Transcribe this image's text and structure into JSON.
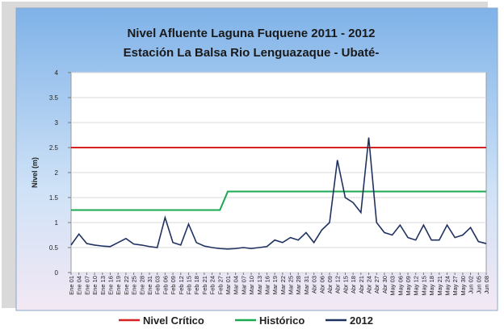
{
  "chart_data": {
    "type": "line",
    "title": "Nivel Afluente Laguna Fuquene 2011 - 2012",
    "subtitle": "Estación La Balsa Rio Lenguazaque - Ubaté-",
    "y_label": "Nivel (m)",
    "categories": [
      "Ene 01",
      "Ene 04",
      "Ene 07",
      "Ene 10",
      "Ene 13",
      "Ene 16",
      "Ene 19",
      "Ene 22",
      "Ene 25",
      "Ene 28",
      "Ene 31",
      "Feb 03",
      "Feb 06",
      "Feb 09",
      "Feb 12",
      "Feb 15",
      "Feb 18",
      "Feb 21",
      "Feb 24",
      "Feb 27",
      "Mar 01",
      "Mar 04",
      "Mar 07",
      "Mar 10",
      "Mar 13",
      "Mar 16",
      "Mar 19",
      "Mar 22",
      "Mar 25",
      "Mar 28",
      "Mar 31",
      "Abr 03",
      "Abr 06",
      "Abr 09",
      "Abr 12",
      "Abr 15",
      "Abr 18",
      "Abr 21",
      "Abr 24",
      "Abr 27",
      "Abr 30",
      "May 03",
      "May 06",
      "May 09",
      "May 12",
      "May 15",
      "May 18",
      "May 21",
      "May 24",
      "May 27",
      "May 30",
      "Jun 02",
      "Jun 05",
      "Jun 08"
    ],
    "series": [
      {
        "name": "Nivel Crítico",
        "color": "#d42020",
        "values": [
          2.5,
          2.5,
          2.5,
          2.5,
          2.5,
          2.5,
          2.5,
          2.5,
          2.5,
          2.5,
          2.5,
          2.5,
          2.5,
          2.5,
          2.5,
          2.5,
          2.5,
          2.5,
          2.5,
          2.5,
          2.5,
          2.5,
          2.5,
          2.5,
          2.5,
          2.5,
          2.5,
          2.5,
          2.5,
          2.5,
          2.5,
          2.5,
          2.5,
          2.5,
          2.5,
          2.5,
          2.5,
          2.5,
          2.5,
          2.5,
          2.5,
          2.5,
          2.5,
          2.5,
          2.5,
          2.5,
          2.5,
          2.5,
          2.5,
          2.5,
          2.5,
          2.5,
          2.5,
          2.5
        ]
      },
      {
        "name": "Histórico",
        "color": "#1aa850",
        "values": [
          1.25,
          1.25,
          1.25,
          1.25,
          1.25,
          1.25,
          1.25,
          1.25,
          1.25,
          1.25,
          1.25,
          1.25,
          1.25,
          1.25,
          1.25,
          1.25,
          1.25,
          1.25,
          1.25,
          1.25,
          1.62,
          1.62,
          1.62,
          1.62,
          1.62,
          1.62,
          1.62,
          1.62,
          1.62,
          1.62,
          1.62,
          1.62,
          1.62,
          1.62,
          1.62,
          1.62,
          1.62,
          1.62,
          1.62,
          1.62,
          1.62,
          1.62,
          1.62,
          1.62,
          1.62,
          1.62,
          1.62,
          1.62,
          1.62,
          1.62,
          1.62,
          1.62,
          1.62,
          1.62
        ]
      },
      {
        "name": "2012",
        "color": "#1f3160",
        "values": [
          0.55,
          0.77,
          0.58,
          0.55,
          0.53,
          0.52,
          0.6,
          0.68,
          0.57,
          0.55,
          0.52,
          0.5,
          1.1,
          0.6,
          0.55,
          0.97,
          0.6,
          0.53,
          0.5,
          0.48,
          0.47,
          0.48,
          0.5,
          0.48,
          0.5,
          0.52,
          0.65,
          0.6,
          0.7,
          0.65,
          0.8,
          0.6,
          0.85,
          1.0,
          2.25,
          1.5,
          1.4,
          1.2,
          2.7,
          1.0,
          0.8,
          0.75,
          0.95,
          0.7,
          0.65,
          0.95,
          0.65,
          0.65,
          0.95,
          0.7,
          0.75,
          0.9,
          0.62,
          0.58
        ]
      }
    ],
    "ylim": [
      0,
      4
    ],
    "yticks": [
      0,
      0.5,
      1,
      1.5,
      2,
      2.5,
      3,
      3.5,
      4
    ],
    "grid": true,
    "legend": "bottom"
  }
}
